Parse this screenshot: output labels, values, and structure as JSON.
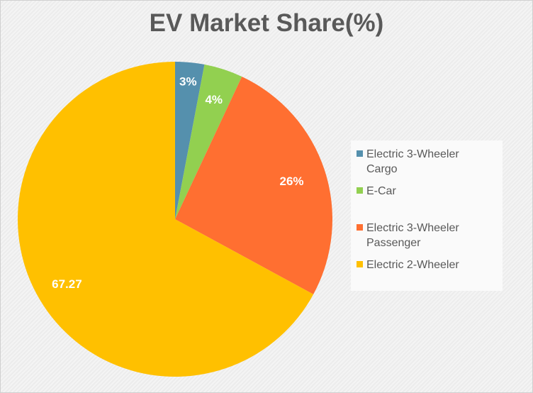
{
  "chart_data": {
    "type": "pie",
    "title": "EV Market Share(%)",
    "categories": [
      "Electric 3-Wheeler Cargo",
      "E-Car",
      "Electric 3-Wheeler Passenger",
      "Electric 2-Wheeler"
    ],
    "values": [
      3,
      4,
      26,
      67.27
    ],
    "data_labels": [
      "3%",
      "4%",
      "26%",
      "67.27"
    ],
    "colors": [
      "#5590ad",
      "#92d050",
      "#ff6f31",
      "#ffc000"
    ],
    "legend_position": "right",
    "legend": [
      "Electric 3-Wheeler Cargo",
      "E-Car",
      "Electric 3-Wheeler Passenger",
      "Electric 2-Wheeler"
    ]
  }
}
